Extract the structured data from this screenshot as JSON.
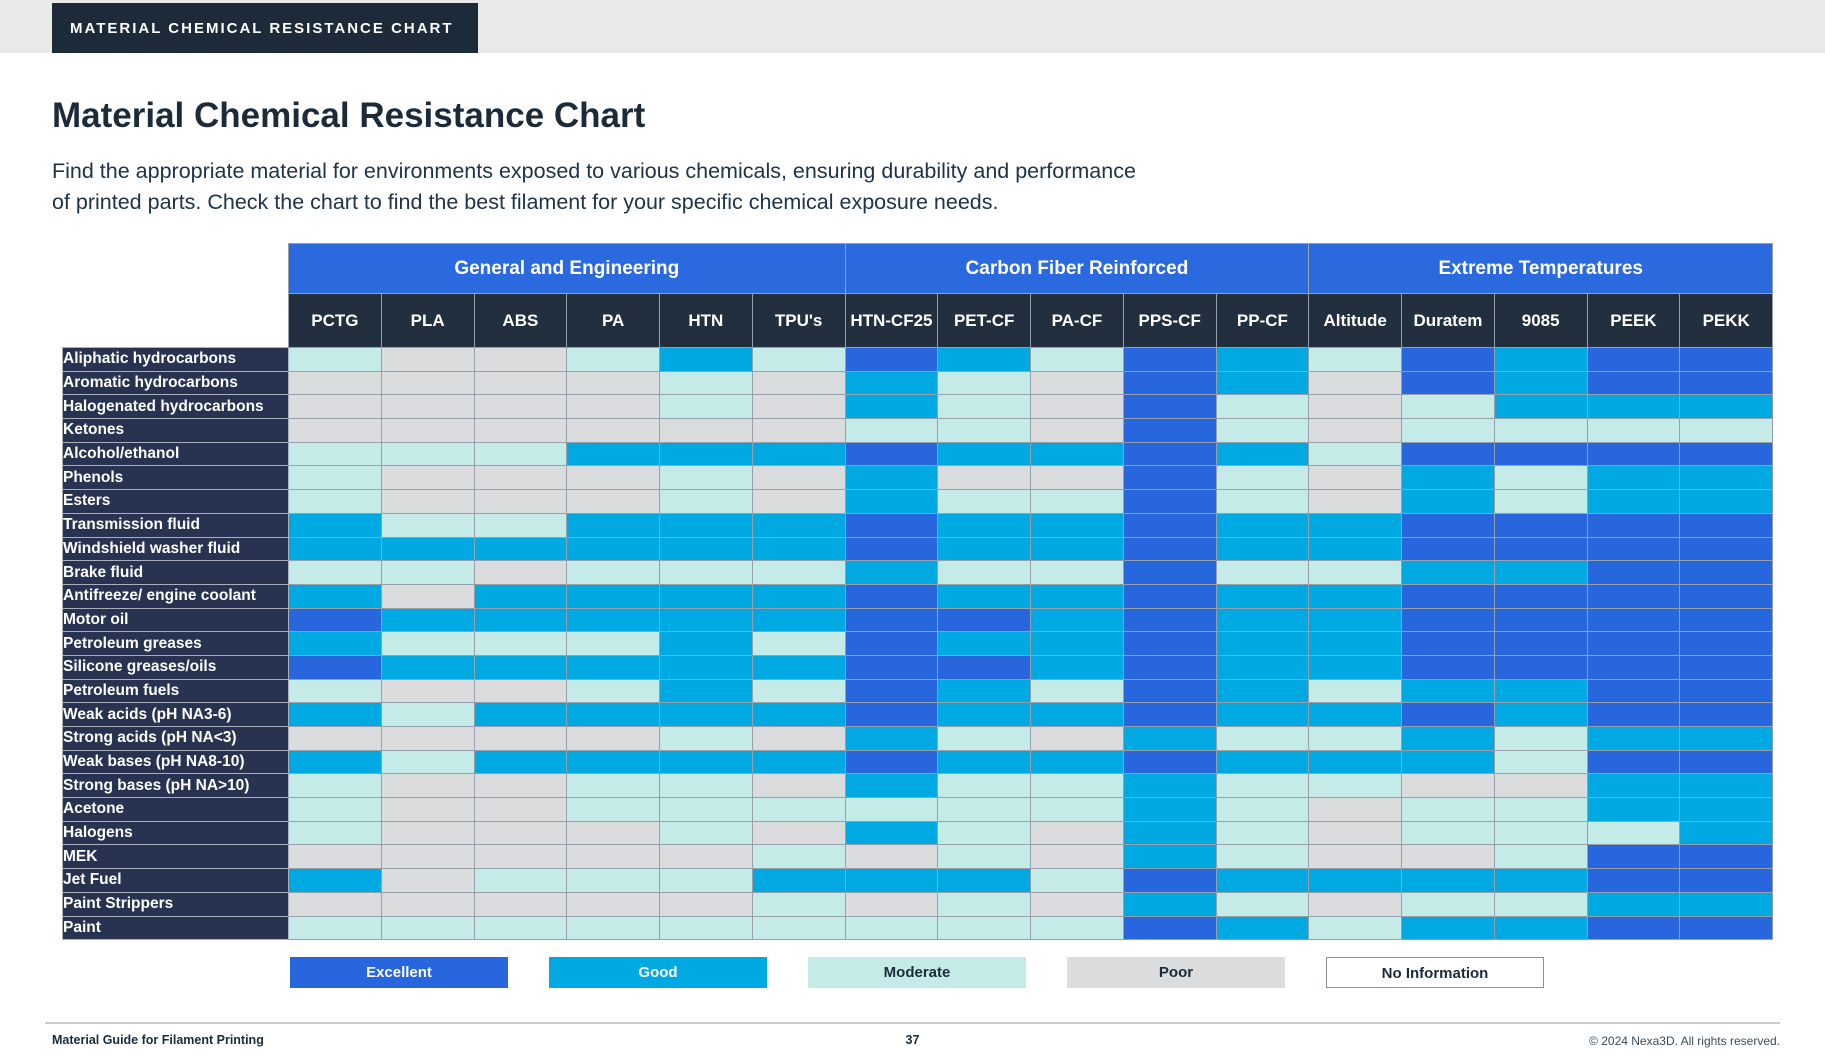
{
  "banner": {
    "label": "MATERIAL CHEMICAL RESISTANCE CHART"
  },
  "header": {
    "title": "Material Chemical Resistance Chart",
    "subtitle_line1": "Find the appropriate material for environments exposed to various chemicals, ensuring durability and performance",
    "subtitle_line2": "of printed parts. Check the chart to find the best filament for your specific chemical exposure needs."
  },
  "colors": {
    "E": "#2766dc",
    "G": "#00a9e1",
    "M": "#c4ebe8",
    "P": "#dbdcdd",
    "N": "#ffffff",
    "group_header": "#2b69de",
    "column_header": "#222f3e",
    "row_header": "#273350",
    "banner": "#1d2a3a",
    "top_strip": "#e9e9ea",
    "grid_line": "#97a0aa"
  },
  "chart_data": {
    "type": "heatmap",
    "title": "Material Chemical Resistance Chart",
    "rating_scale": {
      "E": "Excellent",
      "G": "Good",
      "M": "Moderate",
      "P": "Poor",
      "N": "No Information"
    },
    "column_groups": [
      {
        "label": "General and Engineering",
        "span": 6
      },
      {
        "label": "Carbon Fiber Reinforced",
        "span": 5
      },
      {
        "label": "Extreme Temperatures",
        "span": 5
      }
    ],
    "columns": [
      "PCTG",
      "PLA",
      "ABS",
      "PA",
      "HTN",
      "TPU's",
      "HTN-CF25",
      "PET-CF",
      "PA-CF",
      "PPS-CF",
      "PP-CF",
      "Altitude",
      "Duratem",
      "9085",
      "PEEK",
      "PEKK"
    ],
    "rows": [
      "Aliphatic hydrocarbons",
      "Aromatic hydrocarbons",
      "Halogenated hydrocarbons",
      "Ketones",
      "Alcohol/ethanol",
      "Phenols",
      "Esters",
      "Transmission fluid",
      "Windshield washer fluid",
      "Brake fluid",
      "Antifreeze/ engine coolant",
      "Motor oil",
      "Petroleum greases",
      "Silicone greases/oils",
      "Petroleum fuels",
      "Weak acids (pH NA3-6)",
      "Strong acids (pH NA<3)",
      "Weak bases (pH NA8-10)",
      "Strong bases (pH NA>10)",
      "Acetone",
      "Halogens",
      "MEK",
      "Jet Fuel",
      "Paint Strippers",
      "Paint"
    ],
    "values": [
      [
        "M",
        "P",
        "P",
        "M",
        "G",
        "M",
        "E",
        "G",
        "M",
        "E",
        "G",
        "M",
        "E",
        "G",
        "E",
        "E"
      ],
      [
        "P",
        "P",
        "P",
        "P",
        "M",
        "P",
        "G",
        "M",
        "P",
        "E",
        "G",
        "P",
        "E",
        "G",
        "E",
        "E"
      ],
      [
        "P",
        "P",
        "P",
        "P",
        "M",
        "P",
        "G",
        "M",
        "P",
        "E",
        "M",
        "P",
        "M",
        "G",
        "G",
        "G"
      ],
      [
        "P",
        "P",
        "P",
        "P",
        "P",
        "P",
        "M",
        "M",
        "P",
        "E",
        "M",
        "P",
        "M",
        "M",
        "M",
        "M"
      ],
      [
        "M",
        "M",
        "M",
        "G",
        "G",
        "G",
        "E",
        "G",
        "G",
        "E",
        "G",
        "M",
        "E",
        "E",
        "E",
        "E"
      ],
      [
        "M",
        "P",
        "P",
        "P",
        "M",
        "P",
        "G",
        "P",
        "P",
        "E",
        "M",
        "P",
        "G",
        "M",
        "G",
        "G"
      ],
      [
        "M",
        "P",
        "P",
        "P",
        "M",
        "P",
        "G",
        "M",
        "M",
        "E",
        "M",
        "P",
        "G",
        "M",
        "G",
        "G"
      ],
      [
        "G",
        "M",
        "M",
        "G",
        "G",
        "G",
        "E",
        "G",
        "G",
        "E",
        "G",
        "G",
        "E",
        "E",
        "E",
        "E"
      ],
      [
        "G",
        "G",
        "G",
        "G",
        "G",
        "G",
        "E",
        "G",
        "G",
        "E",
        "G",
        "G",
        "E",
        "E",
        "E",
        "E"
      ],
      [
        "M",
        "M",
        "P",
        "M",
        "M",
        "M",
        "G",
        "M",
        "M",
        "E",
        "M",
        "M",
        "G",
        "G",
        "E",
        "E"
      ],
      [
        "G",
        "P",
        "G",
        "G",
        "G",
        "G",
        "E",
        "G",
        "G",
        "E",
        "G",
        "G",
        "E",
        "E",
        "E",
        "E"
      ],
      [
        "E",
        "G",
        "G",
        "G",
        "G",
        "G",
        "E",
        "E",
        "G",
        "E",
        "G",
        "G",
        "E",
        "E",
        "E",
        "E"
      ],
      [
        "G",
        "M",
        "M",
        "M",
        "G",
        "M",
        "E",
        "G",
        "G",
        "E",
        "G",
        "G",
        "E",
        "E",
        "E",
        "E"
      ],
      [
        "E",
        "G",
        "G",
        "G",
        "G",
        "G",
        "E",
        "E",
        "G",
        "E",
        "G",
        "G",
        "E",
        "E",
        "E",
        "E"
      ],
      [
        "M",
        "P",
        "P",
        "M",
        "G",
        "M",
        "E",
        "G",
        "M",
        "E",
        "G",
        "M",
        "G",
        "G",
        "E",
        "E"
      ],
      [
        "G",
        "M",
        "G",
        "G",
        "G",
        "G",
        "E",
        "G",
        "G",
        "E",
        "G",
        "G",
        "E",
        "G",
        "E",
        "E"
      ],
      [
        "P",
        "P",
        "P",
        "P",
        "M",
        "P",
        "G",
        "M",
        "P",
        "G",
        "M",
        "M",
        "G",
        "M",
        "G",
        "G"
      ],
      [
        "G",
        "M",
        "G",
        "G",
        "G",
        "G",
        "E",
        "G",
        "G",
        "E",
        "G",
        "G",
        "G",
        "M",
        "E",
        "E"
      ],
      [
        "M",
        "P",
        "P",
        "M",
        "M",
        "P",
        "G",
        "M",
        "M",
        "G",
        "M",
        "M",
        "P",
        "P",
        "G",
        "G"
      ],
      [
        "M",
        "P",
        "P",
        "M",
        "M",
        "M",
        "M",
        "M",
        "M",
        "G",
        "M",
        "P",
        "M",
        "M",
        "G",
        "G"
      ],
      [
        "M",
        "P",
        "P",
        "P",
        "M",
        "P",
        "G",
        "M",
        "P",
        "G",
        "M",
        "P",
        "M",
        "M",
        "M",
        "G"
      ],
      [
        "P",
        "P",
        "P",
        "P",
        "P",
        "M",
        "P",
        "M",
        "P",
        "G",
        "M",
        "P",
        "P",
        "M",
        "E",
        "E"
      ],
      [
        "G",
        "P",
        "M",
        "M",
        "M",
        "G",
        "G",
        "G",
        "M",
        "E",
        "G",
        "G",
        "G",
        "G",
        "E",
        "E"
      ],
      [
        "P",
        "P",
        "P",
        "P",
        "P",
        "M",
        "P",
        "M",
        "P",
        "G",
        "M",
        "P",
        "M",
        "M",
        "G",
        "G"
      ],
      [
        "M",
        "M",
        "M",
        "M",
        "M",
        "M",
        "M",
        "M",
        "M",
        "E",
        "G",
        "M",
        "G",
        "G",
        "E",
        "E"
      ]
    ],
    "legend_position": "bottom"
  },
  "legend": {
    "items": [
      {
        "label": "Excellent",
        "code": "E"
      },
      {
        "label": "Good",
        "code": "G"
      },
      {
        "label": "Moderate",
        "code": "M"
      },
      {
        "label": "Poor",
        "code": "P"
      },
      {
        "label": "No Information",
        "code": "N"
      }
    ]
  },
  "footer": {
    "left": "Material Guide for Filament  Printing",
    "page": "37",
    "right": "© 2024 Nexa3D. All rights reserved."
  }
}
